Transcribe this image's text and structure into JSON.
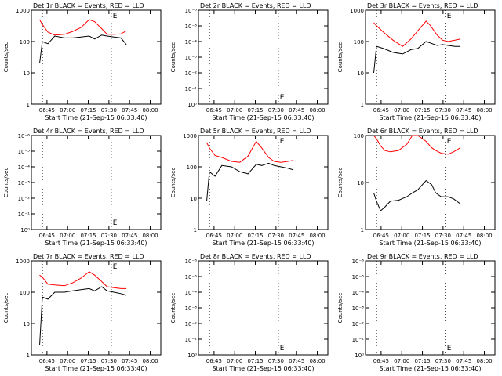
{
  "page": {
    "ylabel": "Counts/sec",
    "xlabel": "Start Time (21-Sep-15 06:33:40)",
    "ticks": [
      "06:45",
      "07:00",
      "07:15",
      "07:30",
      "07:45",
      "08:00"
    ],
    "e_marker": "E",
    "colors": {
      "events": "#000000",
      "lld": "#ff0000",
      "axis": "#000000"
    }
  },
  "chart_data": [
    {
      "type": "line",
      "title": "Det 1r BLACK = Events, RED = LLD",
      "xlabel": "Start Time (21-Sep-15 06:33:40)",
      "ylabel": "Counts/sec",
      "yscale": "log",
      "ylim": [
        1,
        1000
      ],
      "ytick_labels": [
        "1",
        "10",
        "100",
        "1000"
      ],
      "ytick_values": [
        1,
        10,
        100,
        1000
      ],
      "x_minutes": [
        6,
        8,
        12,
        17,
        24,
        30,
        36,
        42,
        46,
        51,
        55,
        60,
        65,
        69
      ],
      "series": [
        {
          "name": "LLD",
          "y": [
            500,
            350,
            200,
            160,
            170,
            210,
            280,
            500,
            430,
            260,
            170,
            170,
            175,
            220
          ]
        },
        {
          "name": "Events",
          "y": [
            20,
            100,
            85,
            150,
            130,
            130,
            140,
            150,
            120,
            160,
            150,
            140,
            130,
            80
          ]
        }
      ]
    },
    {
      "type": "line",
      "title": "Det 2r BLACK = Events, RED = LLD",
      "xlabel": "Start Time (21-Sep-15 06:33:40)",
      "ylabel": "Counts/sec",
      "yscale": "log",
      "ylim": [
        1,
        1e-06
      ],
      "ytick_labels": [
        "10⁰",
        "10⁻¹",
        "10⁻²",
        "10⁻³",
        "10⁻⁴",
        "10⁻⁵",
        "10⁻⁶"
      ],
      "ytick_values": [
        1,
        0.1,
        0.01,
        0.001,
        0.0001,
        1e-05,
        1e-06
      ],
      "series": []
    },
    {
      "type": "line",
      "title": "Det 3r BLACK = Events, RED = LLD",
      "xlabel": "Start Time (21-Sep-15 06:33:40)",
      "ylabel": "Counts/sec",
      "yscale": "log",
      "ylim": [
        1,
        1000
      ],
      "ytick_labels": [
        "1",
        "10",
        "100",
        "1000"
      ],
      "ytick_values": [
        1,
        10,
        100,
        1000
      ],
      "x_minutes": [
        6,
        8,
        13,
        20,
        27,
        33,
        38,
        44,
        47,
        52,
        56,
        60,
        65,
        69
      ],
      "series": [
        {
          "name": "LLD",
          "y": [
            400,
            320,
            200,
            110,
            70,
            120,
            220,
            450,
            330,
            160,
            110,
            100,
            110,
            120
          ]
        },
        {
          "name": "Events",
          "y": [
            10,
            70,
            60,
            45,
            40,
            55,
            60,
            100,
            90,
            75,
            80,
            75,
            70,
            70
          ]
        }
      ]
    },
    {
      "type": "line",
      "title": "Det 4r BLACK = Events, RED = LLD",
      "xlabel": "Start Time (21-Sep-15 06:33:40)",
      "ylabel": "Counts/sec",
      "yscale": "log",
      "ylim": [
        1,
        1e-06
      ],
      "ytick_labels": [
        "10⁰",
        "10⁻¹",
        "10⁻²",
        "10⁻³",
        "10⁻⁴",
        "10⁻⁵",
        "10⁻⁶"
      ],
      "ytick_values": [
        1,
        0.1,
        0.01,
        0.001,
        0.0001,
        1e-05,
        1e-06
      ],
      "series": []
    },
    {
      "type": "line",
      "title": "Det 5r BLACK = Events, RED = LLD",
      "xlabel": "Start Time (21-Sep-15 06:33:40)",
      "ylabel": "Counts/sec",
      "yscale": "log",
      "ylim": [
        1,
        1000
      ],
      "ytick_labels": [
        "1",
        "10",
        "100",
        "1000"
      ],
      "ytick_values": [
        1,
        10,
        100,
        1000
      ],
      "x_minutes": [
        6,
        8,
        12,
        17,
        24,
        30,
        36,
        42,
        46,
        51,
        55,
        60,
        65,
        69
      ],
      "series": [
        {
          "name": "LLD",
          "y": [
            600,
            400,
            230,
            200,
            150,
            140,
            220,
            650,
            400,
            200,
            150,
            140,
            150,
            160
          ]
        },
        {
          "name": "Events",
          "y": [
            8,
            70,
            50,
            110,
            100,
            70,
            60,
            120,
            110,
            130,
            110,
            100,
            90,
            80
          ]
        }
      ]
    },
    {
      "type": "line",
      "title": "Det 6r BLACK = Events, RED = LLD",
      "xlabel": "Start Time (21-Sep-15 06:33:40)",
      "ylabel": "Counts/sec",
      "yscale": "log",
      "ylim": [
        1,
        100
      ],
      "ytick_labels": [
        "1",
        "10",
        "100"
      ],
      "ytick_values": [
        1,
        10,
        100
      ],
      "x_minutes": [
        6,
        8,
        11,
        14,
        18,
        24,
        30,
        34,
        38,
        44,
        48,
        51,
        55,
        60,
        64,
        69
      ],
      "series": [
        {
          "name": "LLD",
          "y": [
            100,
            85,
            60,
            48,
            45,
            48,
            65,
            100,
            100,
            75,
            55,
            48,
            42,
            40,
            45,
            55
          ]
        },
        {
          "name": "Events",
          "y": [
            6,
            4,
            2.5,
            3,
            4,
            4.2,
            5,
            6,
            7,
            11,
            9,
            6,
            5,
            5,
            4.5,
            3.5
          ]
        }
      ]
    },
    {
      "type": "line",
      "title": "Det 7r BLACK = Events, RED = LLD",
      "xlabel": "Start Time (21-Sep-15 06:33:40)",
      "ylabel": "Counts/sec",
      "yscale": "log",
      "ylim": [
        1,
        1000
      ],
      "ytick_labels": [
        "1",
        "10",
        "100",
        "1000"
      ],
      "ytick_values": [
        1,
        10,
        100,
        1000
      ],
      "x_minutes": [
        6,
        8,
        12,
        17,
        24,
        30,
        36,
        42,
        46,
        51,
        55,
        60,
        65,
        69
      ],
      "series": [
        {
          "name": "LLD",
          "y": [
            350,
            300,
            180,
            170,
            160,
            200,
            280,
            450,
            350,
            220,
            150,
            140,
            130,
            130
          ]
        },
        {
          "name": "Events",
          "y": [
            2,
            70,
            60,
            100,
            100,
            110,
            120,
            130,
            110,
            150,
            110,
            100,
            90,
            80
          ]
        }
      ]
    },
    {
      "type": "line",
      "title": "Det 8r BLACK = Events, RED = LLD",
      "xlabel": "Start Time (21-Sep-15 06:33:40)",
      "ylabel": "Counts/sec",
      "yscale": "log",
      "ylim": [
        1,
        1e-06
      ],
      "ytick_labels": [
        "10⁰",
        "10⁻¹",
        "10⁻²",
        "10⁻³",
        "10⁻⁴",
        "10⁻⁵",
        "10⁻⁶"
      ],
      "ytick_values": [
        1,
        0.1,
        0.01,
        0.001,
        0.0001,
        1e-05,
        1e-06
      ],
      "series": []
    },
    {
      "type": "line",
      "title": "Det 9r BLACK = Events, RED = LLD",
      "xlabel": "Start Time (21-Sep-15 06:33:40)",
      "ylabel": "Counts/sec",
      "yscale": "log",
      "ylim": [
        1,
        1e-06
      ],
      "ytick_labels": [
        "10⁰",
        "10⁻¹",
        "10⁻²",
        "10⁻³",
        "10⁻⁴",
        "10⁻⁵",
        "10⁻⁶"
      ],
      "ytick_values": [
        1,
        0.1,
        0.01,
        0.001,
        0.0001,
        1e-05,
        1e-06
      ],
      "series": []
    }
  ]
}
